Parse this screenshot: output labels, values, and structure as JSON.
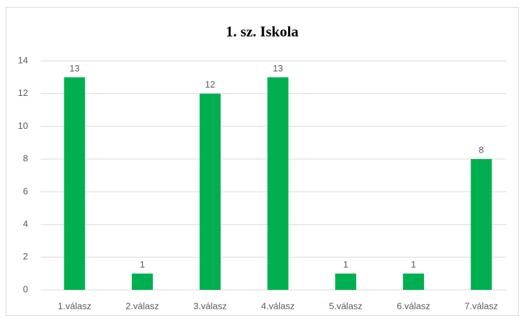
{
  "chart_data": {
    "type": "bar",
    "title": "1. sz. Iskola",
    "categories": [
      "1.válasz",
      "2.válasz",
      "3.válasz",
      "4.válasz",
      "5.válasz",
      "6.válasz",
      "7.válasz"
    ],
    "values": [
      13,
      1,
      12,
      13,
      1,
      1,
      8
    ],
    "color": "#00b050",
    "ylim": [
      0,
      14
    ],
    "yticks": [
      0,
      2,
      4,
      6,
      8,
      10,
      12,
      14
    ],
    "grid": true,
    "data_labels": true
  }
}
